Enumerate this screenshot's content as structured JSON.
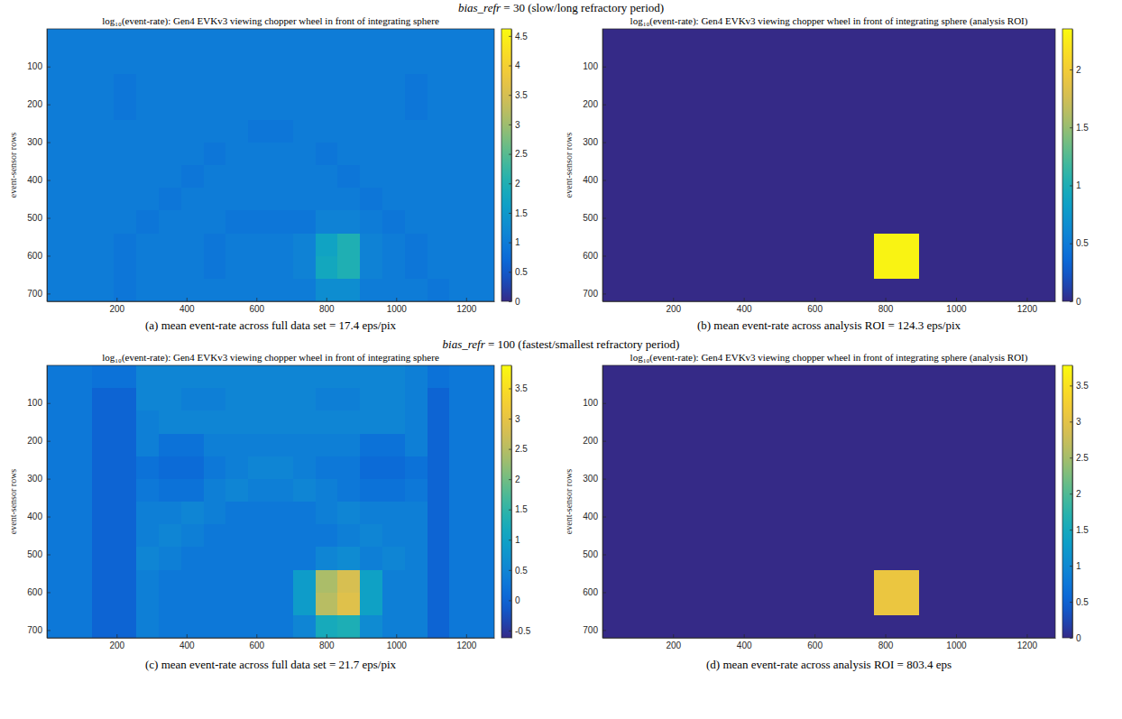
{
  "headers": [
    "bias_refr = 30 (slow/long refractory period)",
    "bias_refr = 100 (fastest/smallest refractory period)"
  ],
  "chart_data": [
    {
      "type": "heatmap",
      "title": "log₁₀(event-rate): Gen4 EVKv3 viewing chopper wheel in front of integrating sphere",
      "ylabel": "event-sensor rows",
      "caption": "(a) mean event-rate across full data set = 17.4 eps/pix",
      "xlim": [
        0.5,
        1280.5
      ],
      "ylim": [
        0.5,
        720.5
      ],
      "xticks": [
        200,
        400,
        600,
        800,
        1000,
        1200
      ],
      "yticks": [
        100,
        200,
        300,
        400,
        500,
        600,
        700
      ],
      "x_edges": [
        0.5,
        64.5,
        128.5,
        192.5,
        256.5,
        320.5,
        384.5,
        448.5,
        512.5,
        576.5,
        640.5,
        704.5,
        768.5,
        832.5,
        896.5,
        960.5,
        1024.5,
        1088.5,
        1152.5,
        1216.5,
        1280.5
      ],
      "y_edges": [
        0.5,
        60.5,
        120.5,
        180.5,
        240.5,
        300.5,
        360.5,
        420.5,
        480.5,
        540.5,
        600.5,
        660.5,
        720.5
      ],
      "cells": [
        [
          1,
          1,
          1,
          1,
          1,
          1,
          1,
          1,
          1,
          1,
          1,
          1,
          1,
          1,
          1,
          1,
          1,
          1,
          1,
          1
        ],
        [
          1,
          1,
          1,
          1,
          1,
          1,
          1,
          1,
          1,
          1,
          1,
          1,
          1,
          1,
          1,
          1,
          1,
          1,
          1,
          1
        ],
        [
          1,
          1,
          1,
          0.9,
          1,
          1,
          1,
          1,
          1,
          1,
          1,
          1,
          1,
          1,
          1,
          1,
          0.9,
          1,
          1,
          1
        ],
        [
          1,
          1,
          1,
          0.9,
          1,
          1,
          1,
          1,
          1,
          1,
          1,
          1,
          1,
          1,
          1,
          1,
          0.9,
          1,
          1,
          1
        ],
        [
          1,
          1,
          1,
          1,
          1,
          1,
          1,
          1,
          1,
          0.9,
          0.9,
          1,
          1,
          1,
          1,
          1,
          1,
          1,
          1,
          1
        ],
        [
          1,
          1,
          1,
          1,
          1,
          1,
          1,
          0.9,
          1,
          1,
          1,
          1,
          0.9,
          1,
          1,
          1,
          1,
          1,
          1,
          1
        ],
        [
          1,
          1,
          1,
          1,
          1,
          1,
          0.9,
          1,
          1,
          1,
          1,
          1,
          1,
          0.9,
          1,
          1,
          1,
          1,
          1,
          1
        ],
        [
          1,
          1,
          1,
          1,
          1,
          0.9,
          1,
          1,
          1,
          1,
          1,
          1,
          1,
          1,
          0.9,
          1,
          1,
          1,
          1,
          1
        ],
        [
          1,
          1,
          1,
          1,
          0.9,
          1,
          1,
          1,
          0.9,
          0.9,
          0.9,
          0.9,
          1.1,
          1.1,
          1,
          0.9,
          1,
          1,
          1,
          1
        ],
        [
          1,
          1,
          1,
          0.9,
          1,
          1,
          1,
          0.9,
          1,
          1,
          1,
          1.1,
          1.7,
          2.0,
          1.1,
          1,
          0.9,
          1,
          1,
          1
        ],
        [
          1,
          1,
          1,
          0.9,
          1,
          1,
          1,
          0.9,
          1,
          1,
          1,
          1.1,
          1.8,
          2.0,
          1.1,
          1,
          0.9,
          1,
          1,
          1
        ],
        [
          1,
          1,
          1,
          0.9,
          1,
          1,
          1,
          1,
          1,
          1,
          1,
          1,
          1.3,
          1.3,
          1,
          1,
          1,
          0.9,
          1,
          1
        ]
      ],
      "colorbar": {
        "range": [
          0,
          4.62
        ],
        "ticks": [
          0,
          0.5,
          1,
          1.5,
          2,
          2.5,
          3,
          3.5,
          4,
          4.5
        ]
      }
    },
    {
      "type": "heatmap",
      "title": "log₁₀(event-rate): Gen4 EVKv3 viewing chopper wheel in front of integrating sphere (analysis ROI)",
      "ylabel": "event-sensor rows",
      "caption": "(b) mean event-rate across analysis ROI = 124.3 eps/pix",
      "xlim": [
        0.5,
        1280.5
      ],
      "ylim": [
        0.5,
        720.5
      ],
      "xticks": [
        200,
        400,
        600,
        800,
        1000,
        1200
      ],
      "yticks": [
        100,
        200,
        300,
        400,
        500,
        600,
        700
      ],
      "x_edges": [
        0.5,
        64.5,
        128.5,
        192.5,
        256.5,
        320.5,
        384.5,
        448.5,
        512.5,
        576.5,
        640.5,
        704.5,
        768.5,
        832.5,
        896.5,
        960.5,
        1024.5,
        1088.5,
        1152.5,
        1216.5,
        1280.5
      ],
      "y_edges": [
        0.5,
        60.5,
        120.5,
        180.5,
        240.5,
        300.5,
        360.5,
        420.5,
        480.5,
        540.5,
        600.5,
        660.5,
        720.5
      ],
      "cells": [
        [
          0,
          0,
          0,
          0,
          0,
          0,
          0,
          0,
          0,
          0,
          0,
          0,
          0,
          0,
          0,
          0,
          0,
          0,
          0,
          0
        ],
        [
          0,
          0,
          0,
          0,
          0,
          0,
          0,
          0,
          0,
          0,
          0,
          0,
          0,
          0,
          0,
          0,
          0,
          0,
          0,
          0
        ],
        [
          0,
          0,
          0,
          0,
          0,
          0,
          0,
          0,
          0,
          0,
          0,
          0,
          0,
          0,
          0,
          0,
          0,
          0,
          0,
          0
        ],
        [
          0,
          0,
          0,
          0,
          0,
          0,
          0,
          0,
          0,
          0,
          0,
          0,
          0,
          0,
          0,
          0,
          0,
          0,
          0,
          0
        ],
        [
          0,
          0,
          0,
          0,
          0,
          0,
          0,
          0,
          0,
          0,
          0,
          0,
          0,
          0,
          0,
          0,
          0,
          0,
          0,
          0
        ],
        [
          0,
          0,
          0,
          0,
          0,
          0,
          0,
          0,
          0,
          0,
          0,
          0,
          0,
          0,
          0,
          0,
          0,
          0,
          0,
          0
        ],
        [
          0,
          0,
          0,
          0,
          0,
          0,
          0,
          0,
          0,
          0,
          0,
          0,
          0,
          0,
          0,
          0,
          0,
          0,
          0,
          0
        ],
        [
          0,
          0,
          0,
          0,
          0,
          0,
          0,
          0,
          0,
          0,
          0,
          0,
          0,
          0,
          0,
          0,
          0,
          0,
          0,
          0
        ],
        [
          0,
          0,
          0,
          0,
          0,
          0,
          0,
          0,
          0,
          0,
          0,
          0,
          0,
          0,
          0,
          0,
          0,
          0,
          0,
          0
        ],
        [
          0,
          0,
          0,
          0,
          0,
          0,
          0,
          0,
          0,
          0,
          0,
          0,
          2.3,
          2.3,
          0,
          0,
          0,
          0,
          0,
          0
        ],
        [
          0,
          0,
          0,
          0,
          0,
          0,
          0,
          0,
          0,
          0,
          0,
          0,
          2.3,
          2.3,
          0,
          0,
          0,
          0,
          0,
          0
        ],
        [
          0,
          0,
          0,
          0,
          0,
          0,
          0,
          0,
          0,
          0,
          0,
          0,
          0,
          0,
          0,
          0,
          0,
          0,
          0,
          0
        ]
      ],
      "colorbar": {
        "range": [
          0,
          2.35
        ],
        "ticks": [
          0,
          0.5,
          1,
          1.5,
          2
        ]
      }
    },
    {
      "type": "heatmap",
      "title": "log₁₀(event-rate): Gen4 EVKv3 viewing chopper wheel in front of integrating sphere",
      "ylabel": "event-sensor rows",
      "caption": "(c) mean event-rate across full data set = 21.7 eps/pix",
      "xlim": [
        0.5,
        1280.5
      ],
      "ylim": [
        0.5,
        720.5
      ],
      "xticks": [
        200,
        400,
        600,
        800,
        1000,
        1200
      ],
      "yticks": [
        100,
        200,
        300,
        400,
        500,
        600,
        700
      ],
      "x_edges": [
        0.5,
        64.5,
        128.5,
        192.5,
        256.5,
        320.5,
        384.5,
        448.5,
        512.5,
        576.5,
        640.5,
        704.5,
        768.5,
        832.5,
        896.5,
        960.5,
        1024.5,
        1088.5,
        1152.5,
        1216.5,
        1280.5
      ],
      "y_edges": [
        0.5,
        60.5,
        120.5,
        180.5,
        240.5,
        300.5,
        360.5,
        420.5,
        480.5,
        540.5,
        600.5,
        660.5,
        720.5
      ],
      "cells": [
        [
          0.3,
          0.3,
          0.2,
          0.2,
          0.5,
          0.5,
          0.5,
          0.5,
          0.5,
          0.5,
          0.5,
          0.5,
          0.5,
          0.5,
          0.5,
          0.5,
          0.4,
          0.2,
          0.3,
          0.3
        ],
        [
          0.3,
          0.3,
          0,
          0,
          0.5,
          0.5,
          0.4,
          0.4,
          0.5,
          0.5,
          0.5,
          0.5,
          0.4,
          0.4,
          0.5,
          0.5,
          0.4,
          0,
          0.3,
          0.3
        ],
        [
          0.3,
          0.3,
          0,
          0,
          0.4,
          0.5,
          0.5,
          0.5,
          0.5,
          0.5,
          0.5,
          0.5,
          0.5,
          0.5,
          0.5,
          0.5,
          0.4,
          0,
          0.3,
          0.3
        ],
        [
          0.3,
          0.3,
          0,
          0,
          0.4,
          0.2,
          0.2,
          0.4,
          0.4,
          0.4,
          0.4,
          0.4,
          0.4,
          0.4,
          0.2,
          0.2,
          0.4,
          0,
          0.3,
          0.3
        ],
        [
          0.3,
          0.3,
          0,
          0,
          0.2,
          0.1,
          0.1,
          0.3,
          0.4,
          0.5,
          0.5,
          0.4,
          0.3,
          0.3,
          0.1,
          0.1,
          0.2,
          0,
          0.3,
          0.3
        ],
        [
          0.3,
          0.3,
          0,
          0,
          0.3,
          0.2,
          0.2,
          0.4,
          0.5,
          0.4,
          0.4,
          0.5,
          0.4,
          0.3,
          0.2,
          0.2,
          0.3,
          0,
          0.3,
          0.3
        ],
        [
          0.3,
          0.3,
          0,
          0,
          0.4,
          0.4,
          0.5,
          0.4,
          0.3,
          0.3,
          0.3,
          0.3,
          0.4,
          0.5,
          0.4,
          0.4,
          0.4,
          0,
          0.3,
          0.3
        ],
        [
          0.3,
          0.3,
          0,
          0,
          0.4,
          0.5,
          0.4,
          0.3,
          0.3,
          0.3,
          0.3,
          0.3,
          0.3,
          0.4,
          0.5,
          0.4,
          0.4,
          0,
          0.3,
          0.3
        ],
        [
          0.3,
          0.3,
          0,
          0,
          0.5,
          0.4,
          0.3,
          0.3,
          0.3,
          0.3,
          0.3,
          0.3,
          0.5,
          0.6,
          0.4,
          0.5,
          0.4,
          0,
          0.3,
          0.3
        ],
        [
          0.3,
          0.3,
          0,
          0,
          0.4,
          0.3,
          0.3,
          0.3,
          0.3,
          0.3,
          0.3,
          0.9,
          2.4,
          2.8,
          1.0,
          0.4,
          0.4,
          0,
          0.3,
          0.3
        ],
        [
          0.3,
          0.3,
          0,
          0,
          0.4,
          0.3,
          0.3,
          0.3,
          0.3,
          0.3,
          0.3,
          0.9,
          2.5,
          2.9,
          1.0,
          0.4,
          0.4,
          0,
          0.3,
          0.3
        ],
        [
          0.3,
          0.3,
          0,
          0,
          0.4,
          0.3,
          0.3,
          0.3,
          0.3,
          0.3,
          0.3,
          0.5,
          1.2,
          1.3,
          0.6,
          0.4,
          0.4,
          0,
          0.3,
          0.3
        ]
      ],
      "colorbar": {
        "range": [
          -0.62,
          3.88
        ],
        "ticks": [
          -0.5,
          0,
          0.5,
          1,
          1.5,
          2,
          2.5,
          3,
          3.5
        ]
      }
    },
    {
      "type": "heatmap",
      "title": "log₁₀(event-rate): Gen4 EVKv3 viewing chopper wheel in front of integrating sphere (analysis ROI)",
      "ylabel": "event-sensor rows",
      "caption": "(d) mean event-rate across analysis ROI = 803.4 eps",
      "xlim": [
        0.5,
        1280.5
      ],
      "ylim": [
        0.5,
        720.5
      ],
      "xticks": [
        200,
        400,
        600,
        800,
        1000,
        1200
      ],
      "yticks": [
        100,
        200,
        300,
        400,
        500,
        600,
        700
      ],
      "x_edges": [
        0.5,
        64.5,
        128.5,
        192.5,
        256.5,
        320.5,
        384.5,
        448.5,
        512.5,
        576.5,
        640.5,
        704.5,
        768.5,
        832.5,
        896.5,
        960.5,
        1024.5,
        1088.5,
        1152.5,
        1216.5,
        1280.5
      ],
      "y_edges": [
        0.5,
        60.5,
        120.5,
        180.5,
        240.5,
        300.5,
        360.5,
        420.5,
        480.5,
        540.5,
        600.5,
        660.5,
        720.5
      ],
      "cells": [
        [
          0,
          0,
          0,
          0,
          0,
          0,
          0,
          0,
          0,
          0,
          0,
          0,
          0,
          0,
          0,
          0,
          0,
          0,
          0,
          0
        ],
        [
          0,
          0,
          0,
          0,
          0,
          0,
          0,
          0,
          0,
          0,
          0,
          0,
          0,
          0,
          0,
          0,
          0,
          0,
          0,
          0
        ],
        [
          0,
          0,
          0,
          0,
          0,
          0,
          0,
          0,
          0,
          0,
          0,
          0,
          0,
          0,
          0,
          0,
          0,
          0,
          0,
          0
        ],
        [
          0,
          0,
          0,
          0,
          0,
          0,
          0,
          0,
          0,
          0,
          0,
          0,
          0,
          0,
          0,
          0,
          0,
          0,
          0,
          0
        ],
        [
          0,
          0,
          0,
          0,
          0,
          0,
          0,
          0,
          0,
          0,
          0,
          0,
          0,
          0,
          0,
          0,
          0,
          0,
          0,
          0
        ],
        [
          0,
          0,
          0,
          0,
          0,
          0,
          0,
          0,
          0,
          0,
          0,
          0,
          0,
          0,
          0,
          0,
          0,
          0,
          0,
          0
        ],
        [
          0,
          0,
          0,
          0,
          0,
          0,
          0,
          0,
          0,
          0,
          0,
          0,
          0,
          0,
          0,
          0,
          0,
          0,
          0,
          0
        ],
        [
          0,
          0,
          0,
          0,
          0,
          0,
          0,
          0,
          0,
          0,
          0,
          0,
          0,
          0,
          0,
          0,
          0,
          0,
          0,
          0
        ],
        [
          0,
          0,
          0,
          0,
          0,
          0,
          0,
          0,
          0,
          0,
          0,
          0,
          0,
          0,
          0,
          0,
          0,
          0,
          0,
          0
        ],
        [
          0,
          0,
          0,
          0,
          0,
          0,
          0,
          0,
          0,
          0,
          0,
          0,
          3.1,
          3.1,
          0,
          0,
          0,
          0,
          0,
          0
        ],
        [
          0,
          0,
          0,
          0,
          0,
          0,
          0,
          0,
          0,
          0,
          0,
          0,
          3.1,
          3.1,
          0,
          0,
          0,
          0,
          0,
          0
        ],
        [
          0,
          0,
          0,
          0,
          0,
          0,
          0,
          0,
          0,
          0,
          0,
          0,
          0,
          0,
          0,
          0,
          0,
          0,
          0,
          0
        ]
      ],
      "colorbar": {
        "range": [
          0,
          3.78
        ],
        "ticks": [
          0,
          0.5,
          1,
          1.5,
          2,
          2.5,
          3,
          3.5
        ]
      }
    }
  ]
}
